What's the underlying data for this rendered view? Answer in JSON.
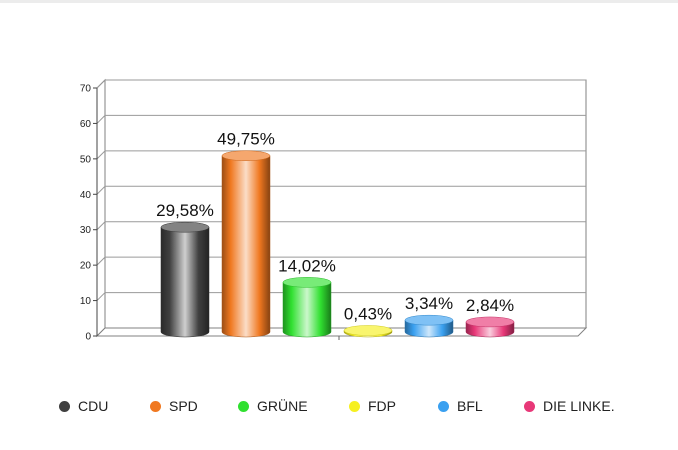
{
  "chart_data": {
    "type": "bar",
    "categories": [
      "CDU",
      "SPD",
      "GRÜNE",
      "FDP",
      "BFL",
      "DIE LINKE."
    ],
    "values": [
      29.58,
      49.75,
      14.02,
      0.43,
      3.34,
      2.84
    ],
    "data_labels": [
      "29,58%",
      "49,75%",
      "14,02%",
      "0,43%",
      "3,34%",
      "2,84%"
    ],
    "colors": [
      "#404040",
      "#f07820",
      "#30e030",
      "#f6f020",
      "#3aa0f0",
      "#e83878"
    ],
    "ylim": [
      0,
      70
    ],
    "yticks": [
      0,
      10,
      20,
      30,
      40,
      50,
      60,
      70
    ],
    "grid": true,
    "legend_position": "bottom",
    "title": "",
    "xlabel": "",
    "ylabel": ""
  }
}
